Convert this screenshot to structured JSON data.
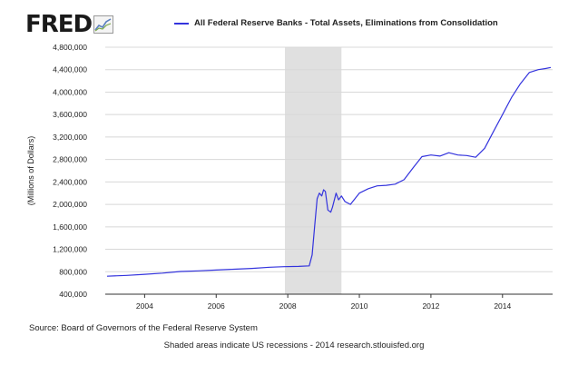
{
  "logo": {
    "text": "FRED"
  },
  "chart_data": {
    "type": "line",
    "series": [
      {
        "name": "All Federal Reserve Banks - Total Assets, Eliminations from Consolidation",
        "color": "#3333dd",
        "points": [
          [
            2002.95,
            720000
          ],
          [
            2003.5,
            735000
          ],
          [
            2004.0,
            755000
          ],
          [
            2004.5,
            775000
          ],
          [
            2005.0,
            805000
          ],
          [
            2005.5,
            815000
          ],
          [
            2006.0,
            830000
          ],
          [
            2006.5,
            845000
          ],
          [
            2007.0,
            860000
          ],
          [
            2007.5,
            880000
          ],
          [
            2007.9,
            890000
          ],
          [
            2008.3,
            895000
          ],
          [
            2008.6,
            905000
          ],
          [
            2008.68,
            1100000
          ],
          [
            2008.75,
            1600000
          ],
          [
            2008.82,
            2100000
          ],
          [
            2008.88,
            2200000
          ],
          [
            2008.95,
            2150000
          ],
          [
            2009.0,
            2260000
          ],
          [
            2009.05,
            2230000
          ],
          [
            2009.12,
            1900000
          ],
          [
            2009.2,
            1860000
          ],
          [
            2009.25,
            1950000
          ],
          [
            2009.35,
            2200000
          ],
          [
            2009.42,
            2080000
          ],
          [
            2009.5,
            2150000
          ],
          [
            2009.6,
            2050000
          ],
          [
            2009.75,
            2000000
          ],
          [
            2010.0,
            2200000
          ],
          [
            2010.25,
            2280000
          ],
          [
            2010.5,
            2330000
          ],
          [
            2010.75,
            2340000
          ],
          [
            2011.0,
            2360000
          ],
          [
            2011.25,
            2440000
          ],
          [
            2011.5,
            2650000
          ],
          [
            2011.75,
            2850000
          ],
          [
            2012.0,
            2880000
          ],
          [
            2012.25,
            2860000
          ],
          [
            2012.5,
            2920000
          ],
          [
            2012.75,
            2880000
          ],
          [
            2013.0,
            2870000
          ],
          [
            2013.25,
            2840000
          ],
          [
            2013.5,
            3000000
          ],
          [
            2013.75,
            3300000
          ],
          [
            2014.0,
            3600000
          ],
          [
            2014.25,
            3900000
          ],
          [
            2014.5,
            4150000
          ],
          [
            2014.75,
            4350000
          ],
          [
            2015.0,
            4400000
          ],
          [
            2015.2,
            4420000
          ],
          [
            2015.35,
            4440000
          ]
        ]
      }
    ],
    "ylabel": "(Millions of Dollars)",
    "yticks": [
      "400,000",
      "800,000",
      "1,200,000",
      "1,600,000",
      "2,000,000",
      "2,400,000",
      "2,800,000",
      "3,200,000",
      "3,600,000",
      "4,000,000",
      "4,400,000",
      "4,800,000"
    ],
    "ytick_values": [
      400000,
      800000,
      1200000,
      1600000,
      2000000,
      2400000,
      2800000,
      3200000,
      3600000,
      4000000,
      4400000,
      4800000
    ],
    "xticks": [
      "2004",
      "2006",
      "2008",
      "2010",
      "2012",
      "2014"
    ],
    "xtick_values": [
      2004,
      2006,
      2008,
      2010,
      2012,
      2014
    ],
    "xlim": [
      2002.9,
      2015.4
    ],
    "ylim": [
      400000,
      4800000
    ],
    "recession": [
      2007.92,
      2009.5
    ],
    "grid": true
  },
  "source": "Source: Board of Governors of the Federal Reserve System",
  "footer": "Shaded areas indicate US recessions - 2014 research.stlouisfed.org",
  "colors": {
    "line": "#3333dd",
    "recession": "#e0e0e0",
    "grid": "#d8d8d8",
    "axis": "#333333"
  }
}
